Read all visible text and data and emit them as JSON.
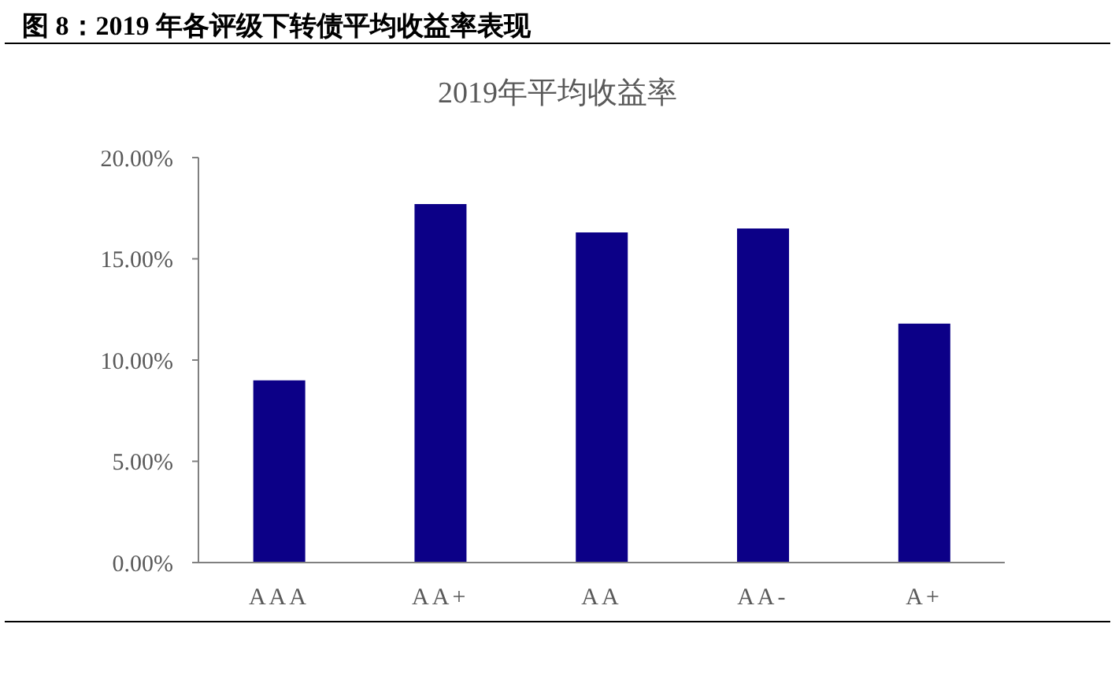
{
  "chart_data": {
    "type": "bar",
    "title": "图 8：2019 年各评级下转债平均收益率表现",
    "subtitle": "2019年平均收益率",
    "categories": [
      "AAA",
      "AA+",
      "AA",
      "AA-",
      "A+"
    ],
    "values": [
      9.0,
      17.7,
      16.3,
      16.5,
      11.8
    ],
    "color": "#0c0087",
    "ylim": [
      0,
      20
    ],
    "yticks": [
      {
        "value": 0,
        "label": "0.00%"
      },
      {
        "value": 5,
        "label": "5.00%"
      },
      {
        "value": 10,
        "label": "10.00%"
      },
      {
        "value": 15,
        "label": "15.00%"
      },
      {
        "value": 20,
        "label": "20.00%"
      }
    ]
  }
}
